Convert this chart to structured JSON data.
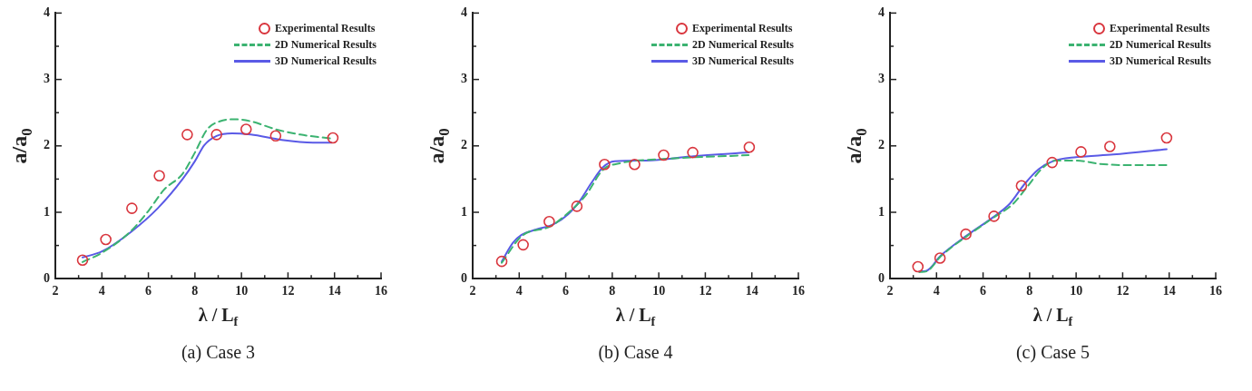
{
  "chart_data": [
    {
      "type": "line",
      "title": "(a) Case 3",
      "xlabel": "λ / L$_{f}$",
      "ylabel": "a/a$_{0}$",
      "legend": "top right",
      "xlim": [
        2,
        16
      ],
      "ylim": [
        0,
        4
      ],
      "xticks": [
        2,
        {
          "value": 3,
          "label": null
        },
        4,
        {
          "value": 5,
          "label": null
        },
        6,
        {
          "value": 7,
          "label": null
        },
        8,
        {
          "value": 9,
          "label": null
        },
        10,
        {
          "value": 11,
          "label": null
        },
        12,
        {
          "value": 13,
          "label": null
        },
        14,
        {
          "value": 15,
          "label": null
        },
        16
      ],
      "yticks": [
        0,
        {
          "value": 0.5,
          "label": null
        },
        1,
        {
          "value": 1.5,
          "label": null
        },
        2,
        {
          "value": 2.5,
          "label": null
        },
        3,
        {
          "value": 3.5,
          "label": null
        },
        4
      ],
      "series": [
        {
          "name": "Experimental Results",
          "type": "scatter",
          "marker": "circle",
          "color": "#d9363e",
          "x": [
            3.17,
            4.17,
            5.29,
            6.47,
            7.67,
            8.93,
            10.2,
            11.47,
            13.93
          ],
          "values": [
            0.28,
            0.59,
            1.06,
            1.55,
            2.17,
            2.17,
            2.25,
            2.15,
            2.12
          ]
        },
        {
          "name": "2D Numerical Results",
          "line_style": "dashed",
          "color": "#3cb371",
          "x": [
            3.17,
            4,
            5.2,
            6,
            6.67,
            7.47,
            8,
            8.53,
            9.07,
            9.73,
            10.4,
            11.47,
            12.53,
            13.87
          ],
          "values": [
            0.25,
            0.39,
            0.7,
            1.02,
            1.34,
            1.58,
            1.9,
            2.25,
            2.37,
            2.4,
            2.37,
            2.25,
            2.17,
            2.11
          ]
        },
        {
          "name": "3D Numerical Results",
          "line_style": "solid",
          "color": "#5a5ae6",
          "x": [
            3.17,
            4,
            5.2,
            6.4,
            7.47,
            8,
            8.4,
            8.93,
            9.6,
            10.4,
            11.73,
            13.07,
            13.87
          ],
          "values": [
            0.32,
            0.41,
            0.69,
            1.06,
            1.5,
            1.77,
            2.01,
            2.15,
            2.19,
            2.17,
            2.09,
            2.05,
            2.05
          ]
        }
      ]
    },
    {
      "type": "line",
      "title": "(b) Case 4",
      "xlabel": "λ / L$_{f}$",
      "ylabel": "a/a$_{0}$",
      "legend": "top right",
      "xlim": [
        2,
        16
      ],
      "ylim": [
        0,
        4
      ],
      "xticks": [
        2,
        {
          "value": 3,
          "label": null
        },
        4,
        {
          "value": 5,
          "label": null
        },
        6,
        {
          "value": 7,
          "label": null
        },
        8,
        {
          "value": 9,
          "label": null
        },
        10,
        {
          "value": 11,
          "label": null
        },
        12,
        {
          "value": 13,
          "label": null
        },
        14,
        {
          "value": 15,
          "label": null
        },
        16
      ],
      "yticks": [
        0,
        {
          "value": 0.5,
          "label": null
        },
        1,
        {
          "value": 1.5,
          "label": null
        },
        2,
        {
          "value": 2.5,
          "label": null
        },
        3,
        {
          "value": 3.5,
          "label": null
        },
        4
      ],
      "series": [
        {
          "name": "Experimental Results",
          "type": "scatter",
          "marker": "circle",
          "color": "#d9363e",
          "x": [
            3.25,
            4.17,
            5.29,
            6.48,
            7.67,
            8.96,
            10.21,
            11.46,
            13.89
          ],
          "values": [
            0.26,
            0.51,
            0.86,
            1.09,
            1.72,
            1.72,
            1.86,
            1.9,
            1.98
          ]
        },
        {
          "name": "2D Numerical Results",
          "line_style": "dashed",
          "color": "#3cb371",
          "x": [
            3.25,
            4.1,
            5.35,
            6.1,
            6.85,
            7.6,
            8.35,
            10.1,
            13.86
          ],
          "values": [
            0.24,
            0.64,
            0.79,
            0.99,
            1.25,
            1.64,
            1.74,
            1.8,
            1.86
          ]
        },
        {
          "name": "3D Numerical Results",
          "line_style": "solid",
          "color": "#5a5ae6",
          "x": [
            3.25,
            3.73,
            4.1,
            4.73,
            5.48,
            6.1,
            6.6,
            7.1,
            7.6,
            8.1,
            9.48,
            11.36,
            13.86
          ],
          "values": [
            0.26,
            0.54,
            0.66,
            0.74,
            0.82,
            0.97,
            1.17,
            1.44,
            1.68,
            1.77,
            1.78,
            1.84,
            1.9
          ]
        }
      ]
    },
    {
      "type": "line",
      "title": "(c) Case 5",
      "xlabel": "λ / L$_{f}$",
      "ylabel": "a/a$_{0}$",
      "legend": "top right",
      "xlim": [
        2,
        16
      ],
      "ylim": [
        0,
        4
      ],
      "xticks": [
        2,
        {
          "value": 3,
          "label": null
        },
        4,
        {
          "value": 5,
          "label": null
        },
        6,
        {
          "value": 7,
          "label": null
        },
        8,
        {
          "value": 9,
          "label": null
        },
        10,
        {
          "value": 11,
          "label": null
        },
        12,
        {
          "value": 13,
          "label": null
        },
        14,
        {
          "value": 15,
          "label": null
        },
        16
      ],
      "yticks": [
        0,
        {
          "value": 0.5,
          "label": null
        },
        1,
        {
          "value": 1.5,
          "label": null
        },
        2,
        {
          "value": 2.5,
          "label": null
        },
        3,
        {
          "value": 3.5,
          "label": null
        },
        4
      ],
      "series": [
        {
          "name": "Experimental Results",
          "type": "scatter",
          "marker": "circle",
          "color": "#d9363e",
          "x": [
            3.2,
            4.15,
            5.26,
            6.47,
            7.65,
            8.97,
            10.21,
            11.45,
            13.89
          ],
          "values": [
            0.18,
            0.31,
            0.67,
            0.94,
            1.4,
            1.75,
            1.91,
            1.99,
            2.12
          ]
        },
        {
          "name": "2D Numerical Results",
          "line_style": "dashed",
          "color": "#3cb371",
          "x": [
            3.26,
            3.57,
            4.19,
            5.3,
            6.41,
            7.27,
            7.89,
            8.51,
            9.13,
            10,
            10.99,
            12.22,
            13.89
          ],
          "values": [
            0.1,
            0.11,
            0.34,
            0.64,
            0.91,
            1.12,
            1.38,
            1.65,
            1.78,
            1.78,
            1.73,
            1.71,
            1.71
          ]
        },
        {
          "name": "3D Numerical Results",
          "line_style": "solid",
          "color": "#5a5ae6",
          "x": [
            3.26,
            3.57,
            4.19,
            5.3,
            6.41,
            7.15,
            7.77,
            8.39,
            9.01,
            10,
            11.6,
            13.89
          ],
          "values": [
            0.11,
            0.12,
            0.35,
            0.65,
            0.92,
            1.13,
            1.42,
            1.65,
            1.77,
            1.83,
            1.87,
            1.95
          ]
        }
      ]
    }
  ]
}
